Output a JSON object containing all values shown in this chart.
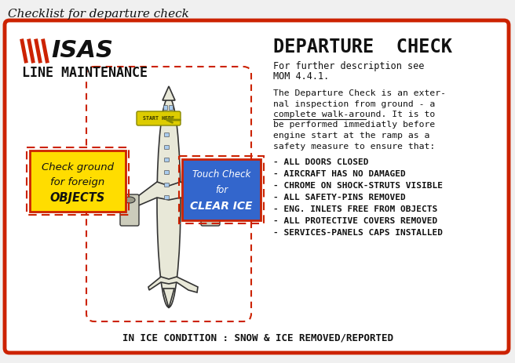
{
  "title": "Checklist for departure check",
  "card_bg": "#ffffff",
  "card_border": "#cc2200",
  "outer_bg": "#f0f0f0",
  "sas_stripes_color": "#cc2200",
  "line_maintenance": "LINE MAINTENANCE",
  "departure_check_title": "DEPARTURE  CHECK",
  "departure_sub1": "For further description see",
  "departure_sub2": "MOM 4.4.1.",
  "desc_line1": "The Departure Check is an exter-",
  "desc_line2": "nal inspection from ground - a",
  "desc_line3": "complete walk-around. It is to",
  "desc_line4": "be performed immediatly before",
  "desc_line5": "engine start at the ramp as a",
  "desc_line6": "safety measure to ensure that:",
  "checklist": [
    "- ALL DOORS CLOSED",
    "- AIRCRAFT HAS NO DAMAGED",
    "- CHROME ON SHOCK-STRUTS VISIBLE",
    "- ALL SAFETY-PINS REMOVED",
    "- ENG. INLETS FREE FROM OBJECTS",
    "- ALL PROTECTIVE COVERS REMOVED",
    "- SERVICES-PANELS CAPS INSTALLED"
  ],
  "bottom_text": "IN ICE CONDITION : SNOW & ICE REMOVED/REPORTED",
  "yellow_box_line1": "Check ground",
  "yellow_box_line2": "for foreign",
  "yellow_box_line3": "OBJECTS",
  "yellow_box_bg": "#ffdd00",
  "yellow_box_border": "#cc2200",
  "blue_box_line1": "Touch Check",
  "blue_box_line2": "for",
  "blue_box_line3": "CLEAR ICE",
  "blue_box_bg": "#3366cc",
  "blue_box_border": "#cc2200",
  "start_here_text": "START HERE",
  "start_here_bg": "#ddcc00",
  "dashed_color": "#cc2200",
  "plane_color": "#e8e8d8",
  "plane_outline": "#333333"
}
